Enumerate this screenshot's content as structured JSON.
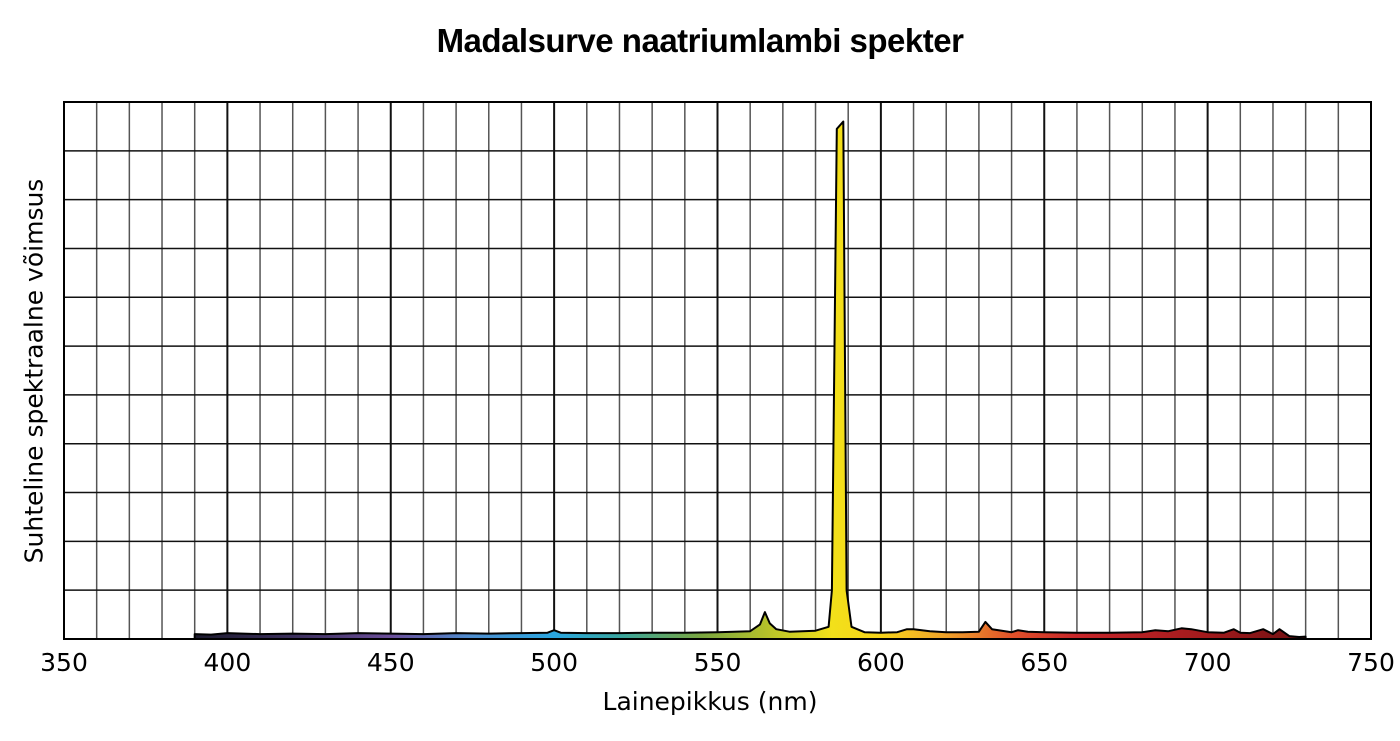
{
  "chart_data": {
    "type": "area",
    "title": "Madalsurve naatriumlambi spekter",
    "xlabel": "Lainepikkus (nm)",
    "ylabel": "Suhteline spektraalne võimsus",
    "xlim": [
      350,
      750
    ],
    "ylim": [
      0,
      11
    ],
    "x_ticks": [
      350,
      400,
      450,
      500,
      550,
      600,
      650,
      700,
      750
    ],
    "x_minor_step": 10,
    "y_grid_rows": 11,
    "y_tick_labels": [],
    "grid": true,
    "legend": null,
    "fill": "visible-spectrum gradient",
    "x": [
      390,
      395,
      400,
      410,
      420,
      430,
      440,
      450,
      460,
      470,
      480,
      490,
      498,
      500,
      502,
      510,
      520,
      530,
      540,
      550,
      560,
      563,
      564.5,
      566,
      568,
      572,
      580,
      584,
      585,
      586.5,
      588.5,
      589.5,
      591,
      595,
      600,
      605,
      608,
      610,
      615,
      620,
      625,
      630,
      632,
      634,
      640,
      642,
      645,
      650,
      660,
      670,
      680,
      684,
      688,
      692,
      695,
      700,
      705,
      708,
      710,
      713,
      717,
      720,
      722,
      725,
      728,
      730
    ],
    "values": [
      0.1,
      0.09,
      0.12,
      0.1,
      0.11,
      0.1,
      0.12,
      0.11,
      0.1,
      0.12,
      0.11,
      0.12,
      0.13,
      0.18,
      0.13,
      0.12,
      0.12,
      0.13,
      0.13,
      0.14,
      0.16,
      0.3,
      0.55,
      0.32,
      0.2,
      0.15,
      0.17,
      0.25,
      1.0,
      10.45,
      10.6,
      1.0,
      0.25,
      0.14,
      0.13,
      0.14,
      0.2,
      0.2,
      0.16,
      0.14,
      0.14,
      0.15,
      0.35,
      0.2,
      0.14,
      0.18,
      0.15,
      0.14,
      0.13,
      0.13,
      0.14,
      0.18,
      0.16,
      0.22,
      0.2,
      0.14,
      0.13,
      0.2,
      0.13,
      0.12,
      0.2,
      0.1,
      0.2,
      0.06,
      0.04,
      0.05
    ],
    "annotations": []
  },
  "axes": {
    "x_ticks": [
      "350",
      "400",
      "450",
      "500",
      "550",
      "600",
      "650",
      "700",
      "750"
    ]
  },
  "colors": {
    "spectrum_stops": [
      {
        "nm": 390,
        "color": "#1c1a2e"
      },
      {
        "nm": 420,
        "color": "#3b2f5c"
      },
      {
        "nm": 450,
        "color": "#6b4e9a"
      },
      {
        "nm": 475,
        "color": "#4f8fd0"
      },
      {
        "nm": 500,
        "color": "#2aa6e0"
      },
      {
        "nm": 520,
        "color": "#3aa6a0"
      },
      {
        "nm": 545,
        "color": "#7aa640"
      },
      {
        "nm": 565,
        "color": "#b5c12a"
      },
      {
        "nm": 585,
        "color": "#f2e01a"
      },
      {
        "nm": 600,
        "color": "#f7d41a"
      },
      {
        "nm": 620,
        "color": "#f0a22a"
      },
      {
        "nm": 640,
        "color": "#e0522a"
      },
      {
        "nm": 660,
        "color": "#c8262a"
      },
      {
        "nm": 700,
        "color": "#a21a1c"
      },
      {
        "nm": 730,
        "color": "#6e1012"
      }
    ],
    "grid_major": "#111111",
    "grid_minor": "#555555",
    "outline": "#000000"
  }
}
